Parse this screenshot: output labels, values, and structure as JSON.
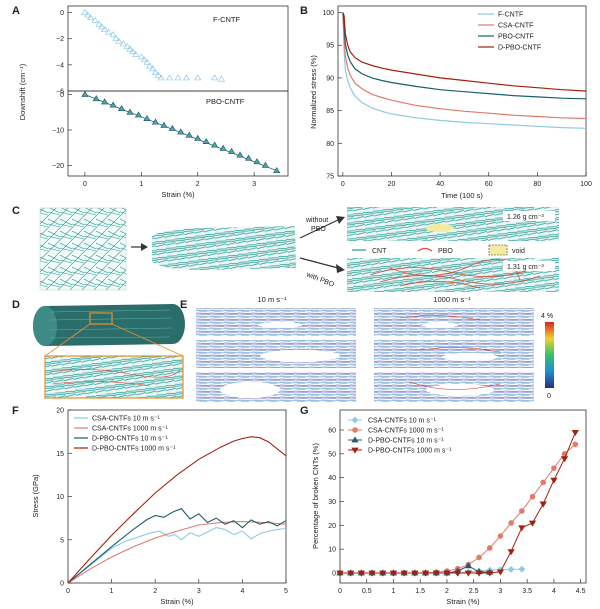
{
  "panels": {
    "A": "A",
    "B": "B",
    "C": "C",
    "D": "D",
    "E": "E",
    "F": "F",
    "G": "G"
  },
  "colors": {
    "fcntf": "#8ecae6",
    "csa": "#e07b6a",
    "pbo": "#1b5e6e",
    "dpbo": "#a3210f",
    "teal": "#1f9a94",
    "pboline": "#d94f3d",
    "void": "#f4eba0",
    "orange": "#e8902c"
  },
  "panelA": {
    "ylabel": "Downshift (cm⁻¹)",
    "xlabel": "Strain (%)",
    "top_label": "F-CNTF",
    "bottom_label": "PBO-CNTF",
    "top_yticks": [
      "0",
      "−2",
      "−4",
      "−6"
    ],
    "bottom_yticks": [
      "0",
      "−10",
      "−20"
    ],
    "xticks": [
      "0",
      "1",
      "2",
      "3"
    ]
  },
  "panelB": {
    "ylabel": "Normalized stress (%)",
    "xlabel": "Time (100 s)",
    "yticks": [
      "75",
      "80",
      "85",
      "90",
      "95",
      "100"
    ],
    "xticks": [
      "0",
      "20",
      "40",
      "60",
      "80",
      "100"
    ],
    "legend": [
      "F-CNTF",
      "CSA-CNTF",
      "PBO-CNTF",
      "D-PBO-CNTF"
    ]
  },
  "panelC": {
    "without_label_1": "without",
    "without_label_2": "PBO",
    "with_label": "with PBO",
    "density_top": "1.26 g cm⁻³",
    "density_bottom": "1.31 g cm⁻³",
    "legend_cnt": "CNT",
    "legend_pbo": "PBO",
    "legend_void": "void"
  },
  "panelE": {
    "speed_low": "10 m s⁻¹",
    "speed_high": "1000 m s⁻¹",
    "colorbar_max": "4 %",
    "colorbar_min": "0"
  },
  "panelF": {
    "ylabel": "Stress (GPa)",
    "xlabel": "Strain (%)",
    "yticks": [
      "0",
      "5",
      "10",
      "15",
      "20"
    ],
    "xticks": [
      "0",
      "1",
      "2",
      "3",
      "4",
      "5"
    ],
    "legend": [
      "CSA-CNTFs 10 m s⁻¹",
      "CSA-CNTFs 1000 m s⁻¹",
      "D-PBO-CNTFs 10 m s⁻¹",
      "D-PBO-CNTFs 1000 m s⁻¹"
    ]
  },
  "panelG": {
    "ylabel": "Percentage of broken CNTs (%)",
    "xlabel": "Strain (%)",
    "yticks": [
      "0",
      "10",
      "20",
      "30",
      "40",
      "50",
      "60"
    ],
    "xticks": [
      "0",
      "0.5",
      "1",
      "1.5",
      "2",
      "2.5",
      "3",
      "3.5",
      "4",
      "4.5"
    ],
    "legend": [
      "CSA-CNTFs 10 m s⁻¹",
      "CSA-CNTFs 1000 m s⁻¹",
      "D-PBO-CNTFs 10 m s⁻¹",
      "D-PBO-CNTFs 1000 m s⁻¹"
    ]
  },
  "chart_data": [
    {
      "type": "scatter",
      "panel": "A-top",
      "xlim": [
        -0.3,
        3.6
      ],
      "ylim": [
        -6,
        0.5
      ],
      "series": [
        {
          "name": "F-CNTF",
          "x": [
            0.0,
            0.05,
            0.1,
            0.18,
            0.25,
            0.3,
            0.35,
            0.42,
            0.5,
            0.55,
            0.6,
            0.68,
            0.75,
            0.8,
            0.85,
            0.9,
            1.0,
            1.05,
            1.1,
            1.15,
            1.2,
            1.25,
            1.3,
            1.35,
            1.5,
            1.65,
            1.8,
            2.0,
            2.3,
            2.42
          ],
          "y": [
            0.0,
            -0.2,
            -0.4,
            -0.6,
            -0.9,
            -1.1,
            -1.3,
            -1.5,
            -1.7,
            -2.0,
            -2.2,
            -2.4,
            -2.6,
            -2.8,
            -3.0,
            -3.2,
            -3.4,
            -3.6,
            -3.8,
            -4.1,
            -4.3,
            -4.6,
            -4.8,
            -5.0,
            -5.0,
            -5.0,
            -5.0,
            -5.0,
            -5.0,
            -5.1
          ]
        }
      ]
    },
    {
      "type": "scatter",
      "panel": "A-bottom",
      "xlim": [
        -0.3,
        3.6
      ],
      "ylim": [
        -23,
        1
      ],
      "series": [
        {
          "name": "PBO-CNTF",
          "x": [
            0.0,
            0.2,
            0.35,
            0.5,
            0.65,
            0.8,
            0.95,
            1.1,
            1.25,
            1.4,
            1.55,
            1.7,
            1.85,
            2.0,
            2.15,
            2.3,
            2.45,
            2.6,
            2.75,
            2.9,
            3.05,
            3.2,
            3.4
          ],
          "y": [
            0.0,
            -1.2,
            -2.1,
            -3.0,
            -4.0,
            -5.0,
            -5.8,
            -6.8,
            -7.8,
            -8.7,
            -9.6,
            -10.6,
            -11.5,
            -12.4,
            -13.3,
            -14.3,
            -15.2,
            -16.1,
            -17.1,
            -18.0,
            -19.0,
            -20.0,
            -21.5
          ]
        }
      ]
    },
    {
      "type": "line",
      "panel": "B",
      "xlim": [
        -2,
        100
      ],
      "ylim": [
        75,
        101
      ],
      "series": [
        {
          "name": "F-CNTF",
          "x": [
            0.5,
            1,
            2,
            3,
            5,
            8,
            12,
            16,
            20,
            30,
            40,
            50,
            60,
            70,
            80,
            90,
            100
          ],
          "y": [
            94,
            91.3,
            89.6,
            88.5,
            87.2,
            86.2,
            85.4,
            84.9,
            84.5,
            83.9,
            83.5,
            83.2,
            83.0,
            82.8,
            82.6,
            82.4,
            82.3
          ]
        },
        {
          "name": "CSA-CNTF",
          "x": [
            0.5,
            1,
            2,
            3,
            5,
            8,
            12,
            16,
            20,
            30,
            40,
            50,
            60,
            70,
            80,
            90,
            100
          ],
          "y": [
            96,
            93.4,
            91.5,
            90.4,
            89.2,
            88.3,
            87.5,
            87.0,
            86.6,
            85.8,
            85.3,
            84.9,
            84.6,
            84.3,
            84.1,
            83.9,
            83.8
          ]
        },
        {
          "name": "PBO-CNTF",
          "x": [
            0.5,
            1,
            2,
            3,
            5,
            8,
            12,
            16,
            20,
            30,
            40,
            50,
            60,
            70,
            80,
            90,
            100
          ],
          "y": [
            98,
            95.2,
            93.5,
            92.5,
            91.4,
            90.6,
            90.0,
            89.6,
            89.3,
            88.7,
            88.2,
            87.9,
            87.6,
            87.3,
            87.1,
            86.9,
            86.8
          ]
        },
        {
          "name": "D-PBO-CNTF",
          "x": [
            0.5,
            1,
            2,
            3,
            5,
            8,
            12,
            16,
            20,
            30,
            40,
            50,
            60,
            70,
            80,
            90,
            100
          ],
          "y": [
            99.5,
            96.8,
            95.0,
            94.0,
            93.1,
            92.4,
            91.9,
            91.5,
            91.2,
            90.6,
            90.0,
            89.6,
            89.2,
            88.8,
            88.5,
            88.2,
            88.0
          ]
        }
      ]
    },
    {
      "type": "line",
      "panel": "F",
      "xlim": [
        0,
        5
      ],
      "ylim": [
        0,
        20
      ],
      "series": [
        {
          "name": "CSA-CNTFs 10 m s⁻¹",
          "x": [
            0,
            0.5,
            1.0,
            1.3,
            1.6,
            1.9,
            2.1,
            2.3,
            2.45,
            2.6,
            2.8,
            3.0,
            3.2,
            3.4,
            3.6,
            3.8,
            4.0,
            4.2,
            4.4,
            4.6,
            4.8,
            5.0
          ],
          "y": [
            0,
            2.0,
            4.0,
            4.8,
            5.3,
            5.8,
            6.0,
            5.4,
            5.6,
            5.0,
            5.8,
            5.4,
            5.9,
            6.4,
            6.2,
            5.6,
            6.0,
            5.1,
            5.7,
            6.0,
            6.2,
            6.3
          ]
        },
        {
          "name": "CSA-CNTFs 1000 m s⁻¹",
          "x": [
            0,
            0.5,
            1.0,
            1.5,
            2.0,
            2.5,
            3.0,
            3.5,
            4.0,
            4.5,
            5.0
          ],
          "y": [
            0,
            1.6,
            3.0,
            4.2,
            5.2,
            6.0,
            6.7,
            7.0,
            7.1,
            7.0,
            6.8
          ]
        },
        {
          "name": "D-PBO-CNTFs 10 m s⁻¹",
          "x": [
            0,
            0.5,
            1.0,
            1.5,
            1.8,
            2.0,
            2.2,
            2.4,
            2.6,
            2.8,
            3.0,
            3.2,
            3.4,
            3.6,
            3.8,
            4.0,
            4.2,
            4.4,
            4.6,
            4.8,
            5.0
          ],
          "y": [
            0,
            2.1,
            4.2,
            6.2,
            7.3,
            7.8,
            7.6,
            8.2,
            8.6,
            7.4,
            8.0,
            7.0,
            7.5,
            6.8,
            7.2,
            6.4,
            7.3,
            6.8,
            7.1,
            6.6,
            7.2
          ]
        },
        {
          "name": "D-PBO-CNTFs 1000 m s⁻¹",
          "x": [
            0,
            0.5,
            1.0,
            1.5,
            2.0,
            2.5,
            3.0,
            3.5,
            3.8,
            4.0,
            4.2,
            4.4,
            4.6,
            4.8,
            5.0
          ],
          "y": [
            0,
            2.8,
            5.5,
            8.0,
            10.4,
            12.5,
            14.3,
            15.7,
            16.4,
            16.7,
            16.9,
            16.8,
            16.3,
            15.5,
            14.7
          ]
        }
      ]
    },
    {
      "type": "line",
      "panel": "G",
      "xlim": [
        0,
        4.6
      ],
      "ylim": [
        0,
        60
      ],
      "series": [
        {
          "name": "CSA-CNTFs 10 m s⁻¹",
          "x": [
            0,
            0.2,
            0.4,
            0.6,
            0.8,
            1.0,
            1.2,
            1.4,
            1.6,
            1.8,
            2.0,
            2.2,
            2.4,
            2.6,
            2.8,
            3.0,
            3.2,
            3.4
          ],
          "y": [
            0,
            0,
            0,
            0,
            0,
            0,
            0,
            0,
            0,
            0,
            0,
            0,
            0.4,
            0.8,
            1.2,
            1.4,
            1.5,
            1.6
          ]
        },
        {
          "name": "CSA-CNTFs 1000 m s⁻¹",
          "x": [
            0,
            0.2,
            0.4,
            0.6,
            0.8,
            1.0,
            1.2,
            1.4,
            1.6,
            1.8,
            2.0,
            2.2,
            2.4,
            2.6,
            2.8,
            3.0,
            3.2,
            3.4,
            3.6,
            3.8,
            4.0,
            4.2,
            4.4
          ],
          "y": [
            0,
            0,
            0,
            0,
            0,
            0,
            0,
            0,
            0,
            0.3,
            0.8,
            1.8,
            3.5,
            6.5,
            10.5,
            15.5,
            21,
            26,
            32,
            38,
            44,
            50,
            54
          ]
        },
        {
          "name": "D-PBO-CNTFs 10 m s⁻¹",
          "x": [
            0,
            0.2,
            0.4,
            0.6,
            0.8,
            1.0,
            1.2,
            1.4,
            1.6,
            1.8,
            2.0,
            2.2,
            2.4,
            2.6,
            2.8
          ],
          "y": [
            0,
            0,
            0,
            0,
            0,
            0,
            0,
            0,
            0,
            0,
            0,
            0.8,
            3.0,
            0.5,
            0.3
          ]
        },
        {
          "name": "D-PBO-CNTFs 1000 m s⁻¹",
          "x": [
            0,
            0.2,
            0.4,
            0.6,
            0.8,
            1.0,
            1.2,
            1.4,
            1.6,
            1.8,
            2.0,
            2.2,
            2.4,
            2.6,
            2.8,
            3.0,
            3.2,
            3.4,
            3.6,
            3.8,
            4.0,
            4.2,
            4.4
          ],
          "y": [
            0,
            0,
            0,
            0,
            0,
            0,
            0,
            0,
            0,
            0,
            0,
            0,
            0,
            0,
            0,
            0.5,
            9,
            19,
            21,
            29,
            39,
            48,
            59
          ]
        }
      ]
    }
  ]
}
